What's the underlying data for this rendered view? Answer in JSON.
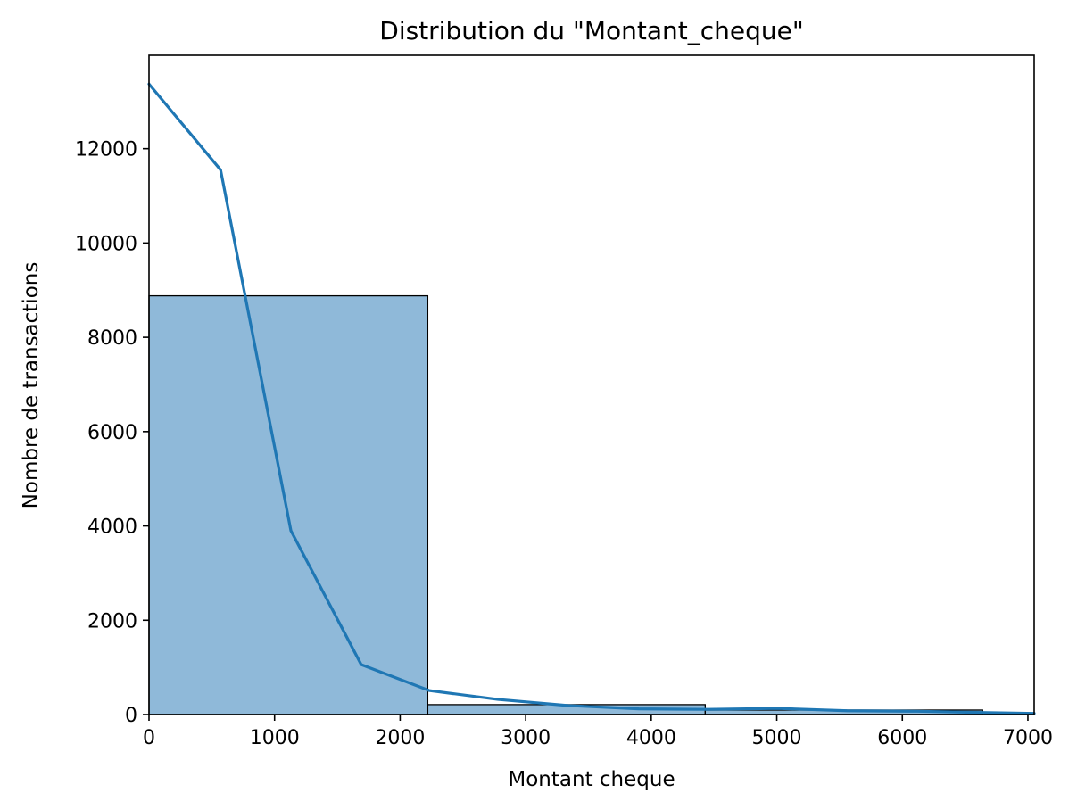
{
  "chart_data": {
    "type": "bar",
    "title": "Distribution du \"Montant_cheque\"",
    "xlabel": "Montant cheque",
    "ylabel": "Nombre de transactions",
    "xlim": [
      0,
      7050
    ],
    "ylim": [
      0,
      13980
    ],
    "x_ticks": [
      0,
      1000,
      2000,
      3000,
      4000,
      5000,
      6000,
      7000
    ],
    "y_ticks": [
      0,
      2000,
      4000,
      6000,
      8000,
      10000,
      12000
    ],
    "grid": false,
    "bins": [
      {
        "start": 0,
        "end": 2220,
        "count": 8880
      },
      {
        "start": 2220,
        "end": 4430,
        "count": 210
      },
      {
        "start": 4430,
        "end": 6640,
        "count": 95
      }
    ],
    "series": [
      {
        "kind": "kde",
        "x": [
          0,
          570,
          1130,
          1690,
          2230,
          2780,
          3340,
          3900,
          4450,
          5010,
          5560,
          6120,
          6680,
          7050
        ],
        "y": [
          13370,
          11550,
          3900,
          1060,
          510,
          320,
          190,
          120,
          110,
          130,
          80,
          70,
          40,
          25
        ]
      }
    ],
    "colors": {
      "bar_fill": "#8fb9d9",
      "bar_edge": "#000000",
      "kde_line": "#1f77b4"
    }
  }
}
